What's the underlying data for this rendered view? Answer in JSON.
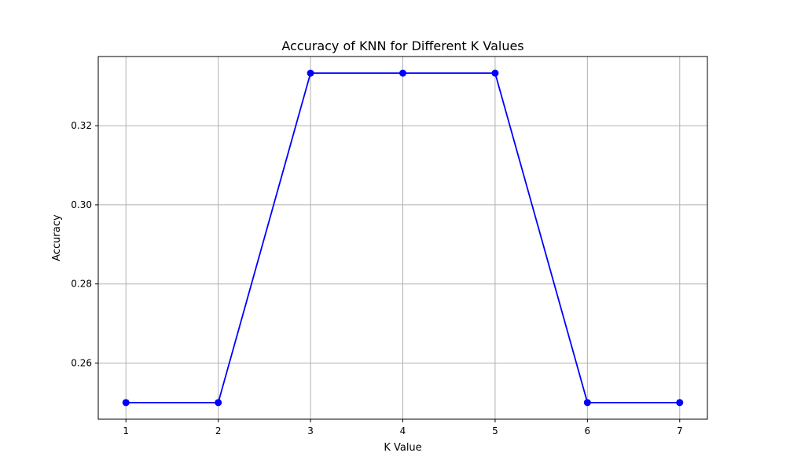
{
  "chart_data": {
    "type": "line",
    "title": "Accuracy of KNN for Different K Values",
    "xlabel": "K Value",
    "ylabel": "Accuracy",
    "x": [
      1,
      2,
      3,
      4,
      5,
      6,
      7
    ],
    "series": [
      {
        "values": [
          0.25,
          0.25,
          0.3333,
          0.3333,
          0.3333,
          0.25,
          0.25
        ],
        "color": "#0000ff",
        "marker": "circle"
      }
    ],
    "xticks": [
      1,
      2,
      3,
      4,
      5,
      6,
      7
    ],
    "xtick_labels": [
      "1",
      "2",
      "3",
      "4",
      "5",
      "6",
      "7"
    ],
    "yticks": [
      0.26,
      0.28,
      0.3,
      0.32
    ],
    "ytick_labels": [
      "0.26",
      "0.28",
      "0.30",
      "0.32"
    ],
    "xlim": [
      0.7,
      7.3
    ],
    "ylim": [
      0.2458,
      0.3375
    ],
    "grid": true
  }
}
